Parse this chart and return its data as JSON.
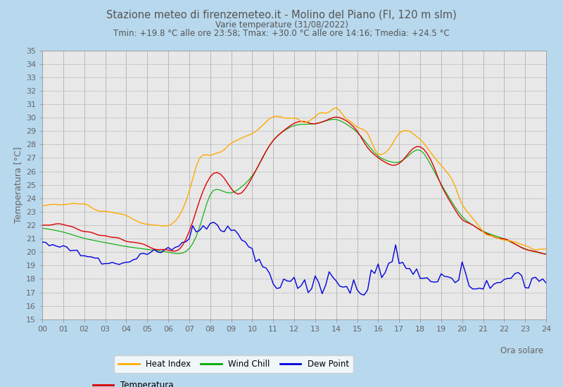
{
  "title": "Stazione meteo di firenzemeteo.it - Molino del Piano (FI, 120 m slm)",
  "subtitle_line1": "Varie temperature (31/08/2022)",
  "subtitle_line2": "Tmin: +19.8 °C alle ore 23:58; Tmax: +30.0 °C alle ore 14:16; Tmedia: +24.5 °C",
  "xlabel": "Ora solare",
  "ylabel": "Temperatura [°C]",
  "ylim": [
    15,
    35
  ],
  "xlim": [
    0,
    144
  ],
  "bg_color": "#b8d8ed",
  "plot_bg_color": "#e8e8e8",
  "grid_color": "#ffffff",
  "grid_minor_color": "#d0d0d0",
  "line_colors": {
    "temp": "#dd0000",
    "heat_index": "#ffaa00",
    "wind_chill": "#00aa00",
    "dew_point": "#0000dd"
  },
  "title_color": "#555555",
  "axis_color": "#666666"
}
